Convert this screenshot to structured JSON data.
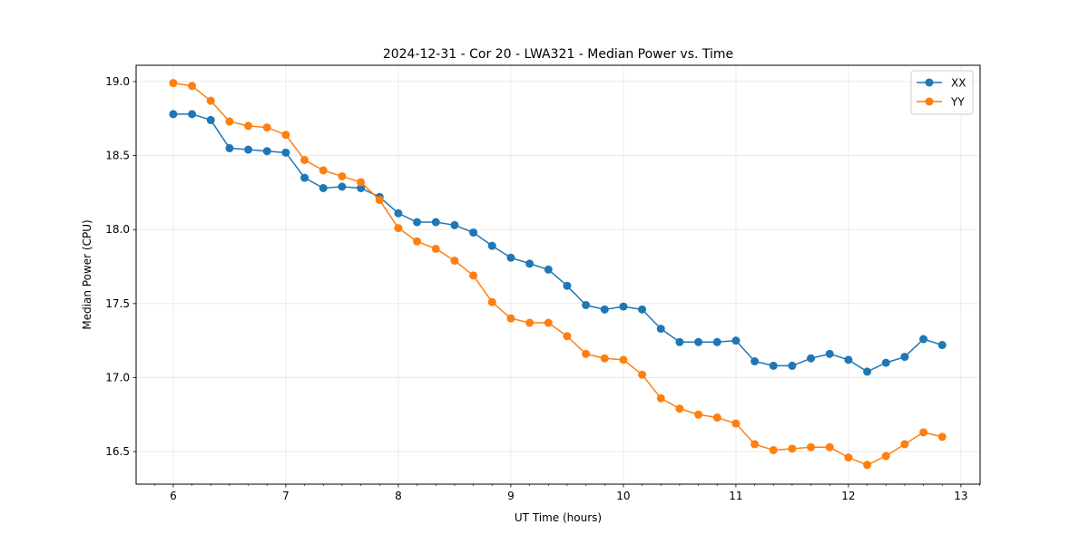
{
  "chart_data": {
    "type": "line",
    "title": "2024-12-31 - Cor 20 - LWA321 - Median Power vs. Time",
    "xlabel": "UT Time (hours)",
    "ylabel": "Median Power (CPU)",
    "xlim": [
      5.67,
      13.17
    ],
    "ylim": [
      16.28,
      19.11
    ],
    "xticks": [
      6,
      7,
      8,
      9,
      10,
      11,
      12,
      13
    ],
    "xtick_labels": [
      "6",
      "7",
      "8",
      "9",
      "10",
      "11",
      "12",
      "13"
    ],
    "yticks": [
      16.5,
      17.0,
      17.5,
      18.0,
      18.5,
      19.0
    ],
    "ytick_labels": [
      "16.5",
      "17.0",
      "17.5",
      "18.0",
      "18.5",
      "19.0"
    ],
    "grid": true,
    "legend_position": "top-right",
    "x": [
      6.0,
      6.1667,
      6.3333,
      6.5,
      6.6667,
      6.8333,
      7.0,
      7.1667,
      7.3333,
      7.5,
      7.6667,
      7.8333,
      8.0,
      8.1667,
      8.3333,
      8.5,
      8.6667,
      8.8333,
      9.0,
      9.1667,
      9.3333,
      9.5,
      9.6667,
      9.8333,
      10.0,
      10.1667,
      10.3333,
      10.5,
      10.6667,
      10.8333,
      11.0,
      11.1667,
      11.3333,
      11.5,
      11.6667,
      11.8333,
      12.0,
      12.1667,
      12.3333,
      12.5,
      12.6667,
      12.8333
    ],
    "series": [
      {
        "name": "XX",
        "color": "#1f77b4",
        "values": [
          18.78,
          18.78,
          18.74,
          18.55,
          18.54,
          18.53,
          18.52,
          18.35,
          18.28,
          18.29,
          18.28,
          18.22,
          18.11,
          18.05,
          18.05,
          18.03,
          17.98,
          17.89,
          17.81,
          17.77,
          17.73,
          17.62,
          17.49,
          17.46,
          17.48,
          17.46,
          17.33,
          17.24,
          17.24,
          17.24,
          17.25,
          17.11,
          17.08,
          17.08,
          17.13,
          17.16,
          17.12,
          17.04,
          17.1,
          17.14,
          17.26,
          17.22
        ]
      },
      {
        "name": "YY",
        "color": "#ff7f0e",
        "values": [
          18.99,
          18.97,
          18.87,
          18.73,
          18.7,
          18.69,
          18.64,
          18.47,
          18.4,
          18.36,
          18.32,
          18.2,
          18.01,
          17.92,
          17.87,
          17.79,
          17.69,
          17.51,
          17.4,
          17.37,
          17.37,
          17.28,
          17.16,
          17.13,
          17.12,
          17.02,
          16.86,
          16.79,
          16.75,
          16.73,
          16.69,
          16.55,
          16.51,
          16.52,
          16.53,
          16.53,
          16.46,
          16.41,
          16.47,
          16.55,
          16.63,
          16.6
        ]
      }
    ]
  }
}
